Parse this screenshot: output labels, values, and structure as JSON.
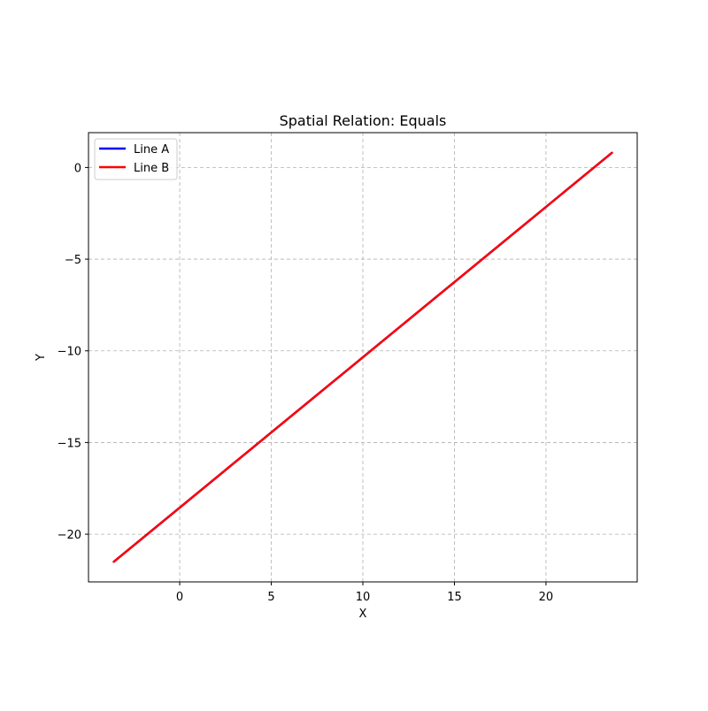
{
  "chart_data": {
    "type": "line",
    "title": "Spatial Relation: Equals",
    "xlabel": "X",
    "ylabel": "Y",
    "xlim": [
      -4.98,
      24.98
    ],
    "ylim": [
      -22.6,
      1.9
    ],
    "xticks": [
      0,
      5,
      10,
      15,
      20
    ],
    "yticks": [
      0,
      -5,
      -10,
      -15,
      -20
    ],
    "xtick_labels": [
      "0",
      "5",
      "10",
      "15",
      "20"
    ],
    "ytick_labels": [
      "0",
      "−5",
      "−10",
      "−15",
      "−20"
    ],
    "grid": true,
    "legend_position": "upper-left",
    "series": [
      {
        "name": "Line A",
        "color": "#0000ff",
        "x": [
          -3.6,
          23.6
        ],
        "y": [
          -21.5,
          0.8
        ]
      },
      {
        "name": "Line B",
        "color": "#ff0000",
        "x": [
          -3.6,
          23.6
        ],
        "y": [
          -21.5,
          0.8
        ]
      }
    ]
  }
}
